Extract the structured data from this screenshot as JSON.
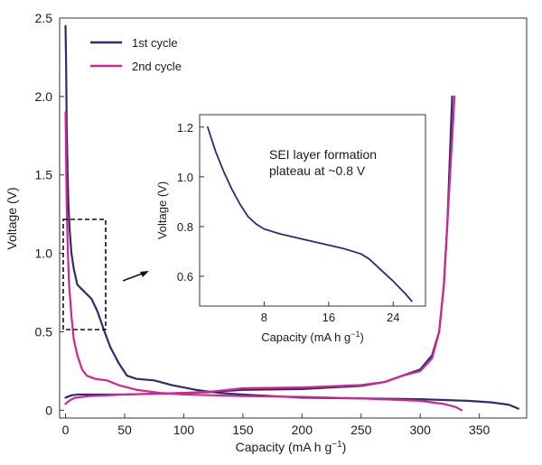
{
  "chart_data": [
    {
      "type": "line",
      "xlabel": "Capacity (mA h g⁻¹)",
      "ylabel": "Voltage (V)",
      "xlim": [
        -5,
        390
      ],
      "ylim": [
        -0.05,
        2.5
      ],
      "xticks": [
        0,
        50,
        100,
        150,
        200,
        250,
        300,
        350
      ],
      "yticks": [
        0,
        0.5,
        1.0,
        1.5,
        2.0,
        2.5
      ],
      "xtick_labels": [
        "0",
        "50",
        "100",
        "150",
        "200",
        "250",
        "300",
        "350"
      ],
      "ytick_labels": [
        "0",
        "0.5",
        "1.0",
        "1.5",
        "2.0",
        "2.5"
      ],
      "legend_position": "top-left",
      "series": [
        {
          "name": "1st cycle",
          "color": "#2b2d6e",
          "segments": [
            [
              [
                0,
                2.45
              ],
              [
                0.5,
                2.2
              ],
              [
                1,
                1.8
              ],
              [
                1.8,
                1.5
              ],
              [
                2.5,
                1.3
              ],
              [
                3.5,
                1.15
              ],
              [
                5,
                1.0
              ],
              [
                7,
                0.9
              ],
              [
                10,
                0.8
              ],
              [
                14,
                0.77
              ],
              [
                18,
                0.74
              ],
              [
                22,
                0.71
              ],
              [
                27,
                0.63
              ],
              [
                33,
                0.5
              ],
              [
                38,
                0.4
              ],
              [
                45,
                0.3
              ],
              [
                52,
                0.22
              ],
              [
                60,
                0.2
              ],
              [
                75,
                0.19
              ],
              [
                90,
                0.16
              ],
              [
                110,
                0.13
              ],
              [
                130,
                0.11
              ],
              [
                150,
                0.1
              ],
              [
                200,
                0.08
              ],
              [
                250,
                0.075
              ],
              [
                300,
                0.07
              ],
              [
                340,
                0.06
              ],
              [
                360,
                0.05
              ],
              [
                375,
                0.035
              ],
              [
                383,
                0.01
              ]
            ],
            [
              [
                0,
                0.08
              ],
              [
                5,
                0.095
              ],
              [
                10,
                0.1
              ],
              [
                50,
                0.1
              ],
              [
                100,
                0.11
              ],
              [
                120,
                0.115
              ],
              [
                150,
                0.13
              ],
              [
                200,
                0.135
              ],
              [
                250,
                0.155
              ],
              [
                270,
                0.18
              ],
              [
                285,
                0.22
              ],
              [
                300,
                0.26
              ],
              [
                310,
                0.35
              ],
              [
                316,
                0.5
              ],
              [
                320,
                0.8
              ],
              [
                323,
                1.2
              ],
              [
                325,
                1.6
              ],
              [
                327,
                2.0
              ]
            ]
          ]
        },
        {
          "name": "2nd cycle",
          "color": "#d1258f",
          "segments": [
            [
              [
                0,
                1.9
              ],
              [
                0.5,
                1.6
              ],
              [
                1,
                1.3
              ],
              [
                2,
                1.0
              ],
              [
                3,
                0.8
              ],
              [
                5,
                0.6
              ],
              [
                7,
                0.45
              ],
              [
                10,
                0.35
              ],
              [
                14,
                0.26
              ],
              [
                18,
                0.22
              ],
              [
                25,
                0.2
              ],
              [
                35,
                0.19
              ],
              [
                45,
                0.16
              ],
              [
                60,
                0.13
              ],
              [
                80,
                0.11
              ],
              [
                100,
                0.1
              ],
              [
                150,
                0.09
              ],
              [
                200,
                0.085
              ],
              [
                250,
                0.075
              ],
              [
                300,
                0.06
              ],
              [
                320,
                0.04
              ],
              [
                330,
                0.02
              ],
              [
                335,
                0.0
              ]
            ],
            [
              [
                0,
                0.04
              ],
              [
                3,
                0.06
              ],
              [
                8,
                0.08
              ],
              [
                20,
                0.09
              ],
              [
                50,
                0.1
              ],
              [
                100,
                0.11
              ],
              [
                125,
                0.12
              ],
              [
                150,
                0.14
              ],
              [
                200,
                0.145
              ],
              [
                250,
                0.16
              ],
              [
                270,
                0.18
              ],
              [
                285,
                0.22
              ],
              [
                300,
                0.25
              ],
              [
                310,
                0.33
              ],
              [
                316,
                0.5
              ],
              [
                320,
                0.8
              ],
              [
                323,
                1.2
              ],
              [
                326,
                1.6
              ],
              [
                329,
                2.0
              ]
            ]
          ]
        }
      ]
    },
    {
      "type": "line",
      "xlabel": "Capacity (mA h g⁻¹)",
      "ylabel": "Voltage (V)",
      "xlim": [
        0,
        28
      ],
      "ylim": [
        0.48,
        1.25
      ],
      "xticks": [
        8,
        16,
        24
      ],
      "yticks": [
        0.6,
        0.8,
        1.0,
        1.2
      ],
      "xtick_labels": [
        "8",
        "16",
        "24"
      ],
      "ytick_labels": [
        "0.6",
        "0.8",
        "1.0",
        "1.2"
      ],
      "annotation": [
        "SEI layer formation",
        "plateau at ~0.8 V"
      ],
      "series": [
        {
          "color": "#2b2d6e",
          "points": [
            [
              1,
              1.2
            ],
            [
              2,
              1.1
            ],
            [
              3,
              1.02
            ],
            [
              4,
              0.95
            ],
            [
              5,
              0.89
            ],
            [
              6,
              0.84
            ],
            [
              7,
              0.81
            ],
            [
              8,
              0.79
            ],
            [
              10,
              0.77
            ],
            [
              12,
              0.755
            ],
            [
              14,
              0.74
            ],
            [
              16,
              0.725
            ],
            [
              18,
              0.71
            ],
            [
              20,
              0.69
            ],
            [
              21,
              0.67
            ],
            [
              22,
              0.64
            ],
            [
              24,
              0.58
            ],
            [
              25.5,
              0.53
            ],
            [
              26.3,
              0.5
            ]
          ]
        }
      ]
    }
  ]
}
